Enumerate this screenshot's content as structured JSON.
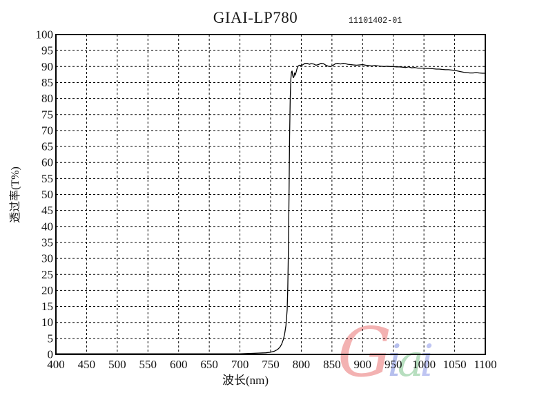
{
  "chart_data": {
    "type": "line",
    "title": "GIAI-LP780",
    "doc_number": "11101402-01",
    "xlabel": "波长(nm)",
    "ylabel": "透过率(T%)",
    "xlim": [
      400,
      1100
    ],
    "ylim": [
      0,
      100
    ],
    "x_ticks": [
      400,
      450,
      500,
      550,
      600,
      650,
      700,
      750,
      800,
      850,
      900,
      950,
      1000,
      1050,
      1100
    ],
    "y_ticks": [
      0,
      5,
      10,
      15,
      20,
      25,
      30,
      35,
      40,
      45,
      50,
      55,
      60,
      65,
      70,
      75,
      80,
      85,
      90,
      95,
      100
    ],
    "grid": "dashed-both-axes",
    "legend_position": "none",
    "line_color": "#000000",
    "series": [
      {
        "name": "transmittance-curve",
        "points": [
          [
            400,
            0.2
          ],
          [
            450,
            0.2
          ],
          [
            500,
            0.2
          ],
          [
            550,
            0.2
          ],
          [
            600,
            0.2
          ],
          [
            650,
            0.2
          ],
          [
            700,
            0.2
          ],
          [
            715,
            0.3
          ],
          [
            730,
            0.4
          ],
          [
            742,
            0.5
          ],
          [
            750,
            0.7
          ],
          [
            756,
            1.0
          ],
          [
            761,
            1.5
          ],
          [
            765,
            2.2
          ],
          [
            768,
            3.2
          ],
          [
            771,
            4.8
          ],
          [
            773,
            6.5
          ],
          [
            775,
            9
          ],
          [
            777,
            14
          ],
          [
            778,
            21
          ],
          [
            779,
            33
          ],
          [
            780,
            50
          ],
          [
            781,
            68
          ],
          [
            782,
            80
          ],
          [
            783,
            86
          ],
          [
            784,
            88.3
          ],
          [
            785,
            88.6
          ],
          [
            786,
            87.2
          ],
          [
            787,
            86.5
          ],
          [
            788,
            86.8
          ],
          [
            789,
            88.0
          ],
          [
            790,
            87.3
          ],
          [
            791,
            87.8
          ],
          [
            793,
            89.3
          ],
          [
            795,
            90.2
          ],
          [
            797,
            90.4
          ],
          [
            800,
            90.3
          ],
          [
            803,
            90.6
          ],
          [
            806,
            91.0
          ],
          [
            810,
            91.0
          ],
          [
            813,
            90.7
          ],
          [
            816,
            90.9
          ],
          [
            820,
            90.8
          ],
          [
            824,
            90.4
          ],
          [
            828,
            90.6
          ],
          [
            832,
            91.0
          ],
          [
            836,
            90.9
          ],
          [
            840,
            90.4
          ],
          [
            844,
            90.1
          ],
          [
            848,
            90.0
          ],
          [
            852,
            90.4
          ],
          [
            856,
            90.9
          ],
          [
            860,
            91.0
          ],
          [
            864,
            90.8
          ],
          [
            868,
            91.0
          ],
          [
            872,
            90.9
          ],
          [
            876,
            90.7
          ],
          [
            880,
            90.6
          ],
          [
            885,
            90.5
          ],
          [
            890,
            90.4
          ],
          [
            895,
            90.5
          ],
          [
            900,
            90.6
          ],
          [
            905,
            90.4
          ],
          [
            910,
            90.3
          ],
          [
            915,
            90.2
          ],
          [
            920,
            90.3
          ],
          [
            925,
            90.2
          ],
          [
            930,
            90.1
          ],
          [
            935,
            90.0
          ],
          [
            940,
            90.1
          ],
          [
            945,
            90.0
          ],
          [
            950,
            90.0
          ],
          [
            955,
            89.9
          ],
          [
            960,
            89.9
          ],
          [
            965,
            89.8
          ],
          [
            970,
            89.7
          ],
          [
            975,
            89.9
          ],
          [
            980,
            89.6
          ],
          [
            985,
            89.7
          ],
          [
            990,
            89.5
          ],
          [
            995,
            89.5
          ],
          [
            1000,
            89.5
          ],
          [
            1005,
            89.4
          ],
          [
            1010,
            89.4
          ],
          [
            1015,
            89.3
          ],
          [
            1020,
            89.2
          ],
          [
            1025,
            89.2
          ],
          [
            1030,
            89.1
          ],
          [
            1035,
            89.0
          ],
          [
            1040,
            89.0
          ],
          [
            1045,
            88.9
          ],
          [
            1050,
            88.8
          ],
          [
            1055,
            88.6
          ],
          [
            1060,
            88.4
          ],
          [
            1065,
            88.2
          ],
          [
            1070,
            88.1
          ],
          [
            1075,
            88.0
          ],
          [
            1080,
            88.0
          ],
          [
            1085,
            88.1
          ],
          [
            1090,
            88.0
          ],
          [
            1095,
            87.9
          ],
          [
            1100,
            87.9
          ]
        ]
      }
    ]
  },
  "watermark": {
    "text": "Giai",
    "letters": [
      {
        "char": "G",
        "color": "#f2a5a5"
      },
      {
        "char": "i",
        "color": "#aab4ea"
      },
      {
        "char": "a",
        "color": "#abd9b5"
      },
      {
        "char": "i",
        "color": "#b5bcf0"
      }
    ]
  }
}
